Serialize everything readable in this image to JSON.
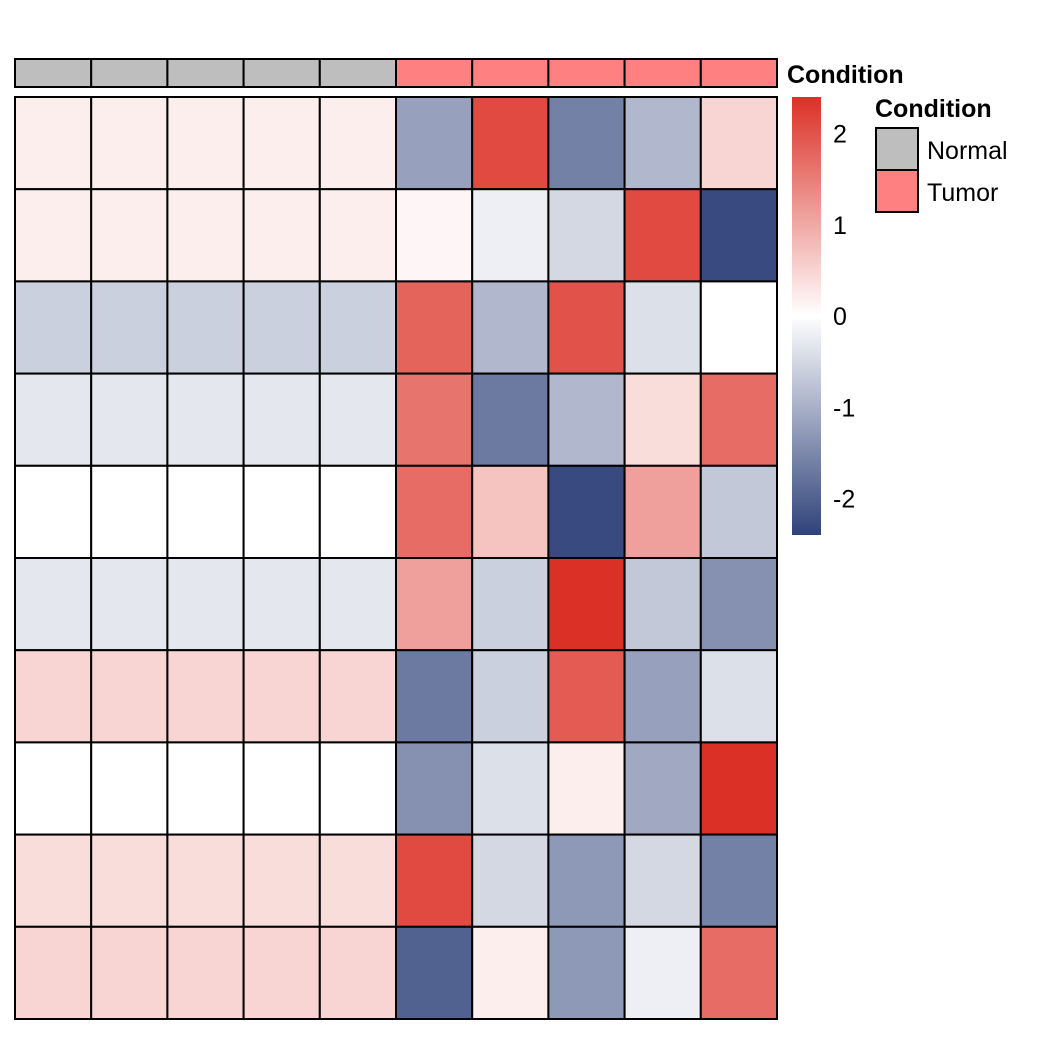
{
  "chart_data": {
    "type": "heatmap",
    "title": "",
    "annotation": {
      "label": "Condition",
      "values": [
        "Normal",
        "Normal",
        "Normal",
        "Normal",
        "Normal",
        "Tumor",
        "Tumor",
        "Tumor",
        "Tumor",
        "Tumor"
      ]
    },
    "matrix": [
      [
        0.2,
        0.2,
        0.2,
        0.2,
        0.2,
        -1.2,
        2.1,
        -1.6,
        -0.9,
        0.5
      ],
      [
        0.2,
        0.2,
        0.2,
        0.2,
        0.2,
        0.1,
        -0.2,
        -0.5,
        2.1,
        -2.3
      ],
      [
        -0.6,
        -0.6,
        -0.6,
        -0.6,
        -0.6,
        1.8,
        -0.9,
        2.0,
        -0.4,
        0.0
      ],
      [
        -0.3,
        -0.3,
        -0.3,
        -0.3,
        -0.3,
        1.6,
        -1.7,
        -0.9,
        0.4,
        1.7
      ],
      [
        0.0,
        0.0,
        0.0,
        0.0,
        0.0,
        1.7,
        0.7,
        -2.3,
        1.1,
        -0.7
      ],
      [
        -0.3,
        -0.3,
        -0.3,
        -0.3,
        -0.3,
        1.1,
        -0.6,
        2.4,
        -0.7,
        -1.4
      ],
      [
        0.5,
        0.5,
        0.5,
        0.5,
        0.5,
        -1.7,
        -0.6,
        1.9,
        -1.2,
        -0.4
      ],
      [
        0.0,
        0.0,
        0.0,
        0.0,
        0.0,
        -1.4,
        -0.4,
        0.2,
        -1.1,
        2.4
      ],
      [
        0.4,
        0.4,
        0.4,
        0.4,
        0.4,
        2.1,
        -0.5,
        -1.3,
        -0.5,
        -1.6
      ],
      [
        0.5,
        0.5,
        0.5,
        0.5,
        0.5,
        -2.0,
        0.2,
        -1.3,
        -0.2,
        1.7
      ]
    ],
    "color_scale": {
      "stops": [
        {
          "value": -2.4,
          "color": "#2f427a"
        },
        {
          "value": 0,
          "color": "#ffffff"
        },
        {
          "value": 2.4,
          "color": "#db3026"
        }
      ],
      "range": [
        -2.4,
        2.4
      ],
      "ticks": [
        2,
        1,
        0,
        -1,
        -2
      ],
      "tick_labels": [
        "2",
        "1",
        "0",
        "-1",
        "-2"
      ]
    },
    "legend": {
      "title": "Condition",
      "items": [
        {
          "label": "Normal",
          "color": "#bebebe"
        },
        {
          "label": "Tumor",
          "color": "#ff8080"
        }
      ]
    },
    "grid": true
  }
}
